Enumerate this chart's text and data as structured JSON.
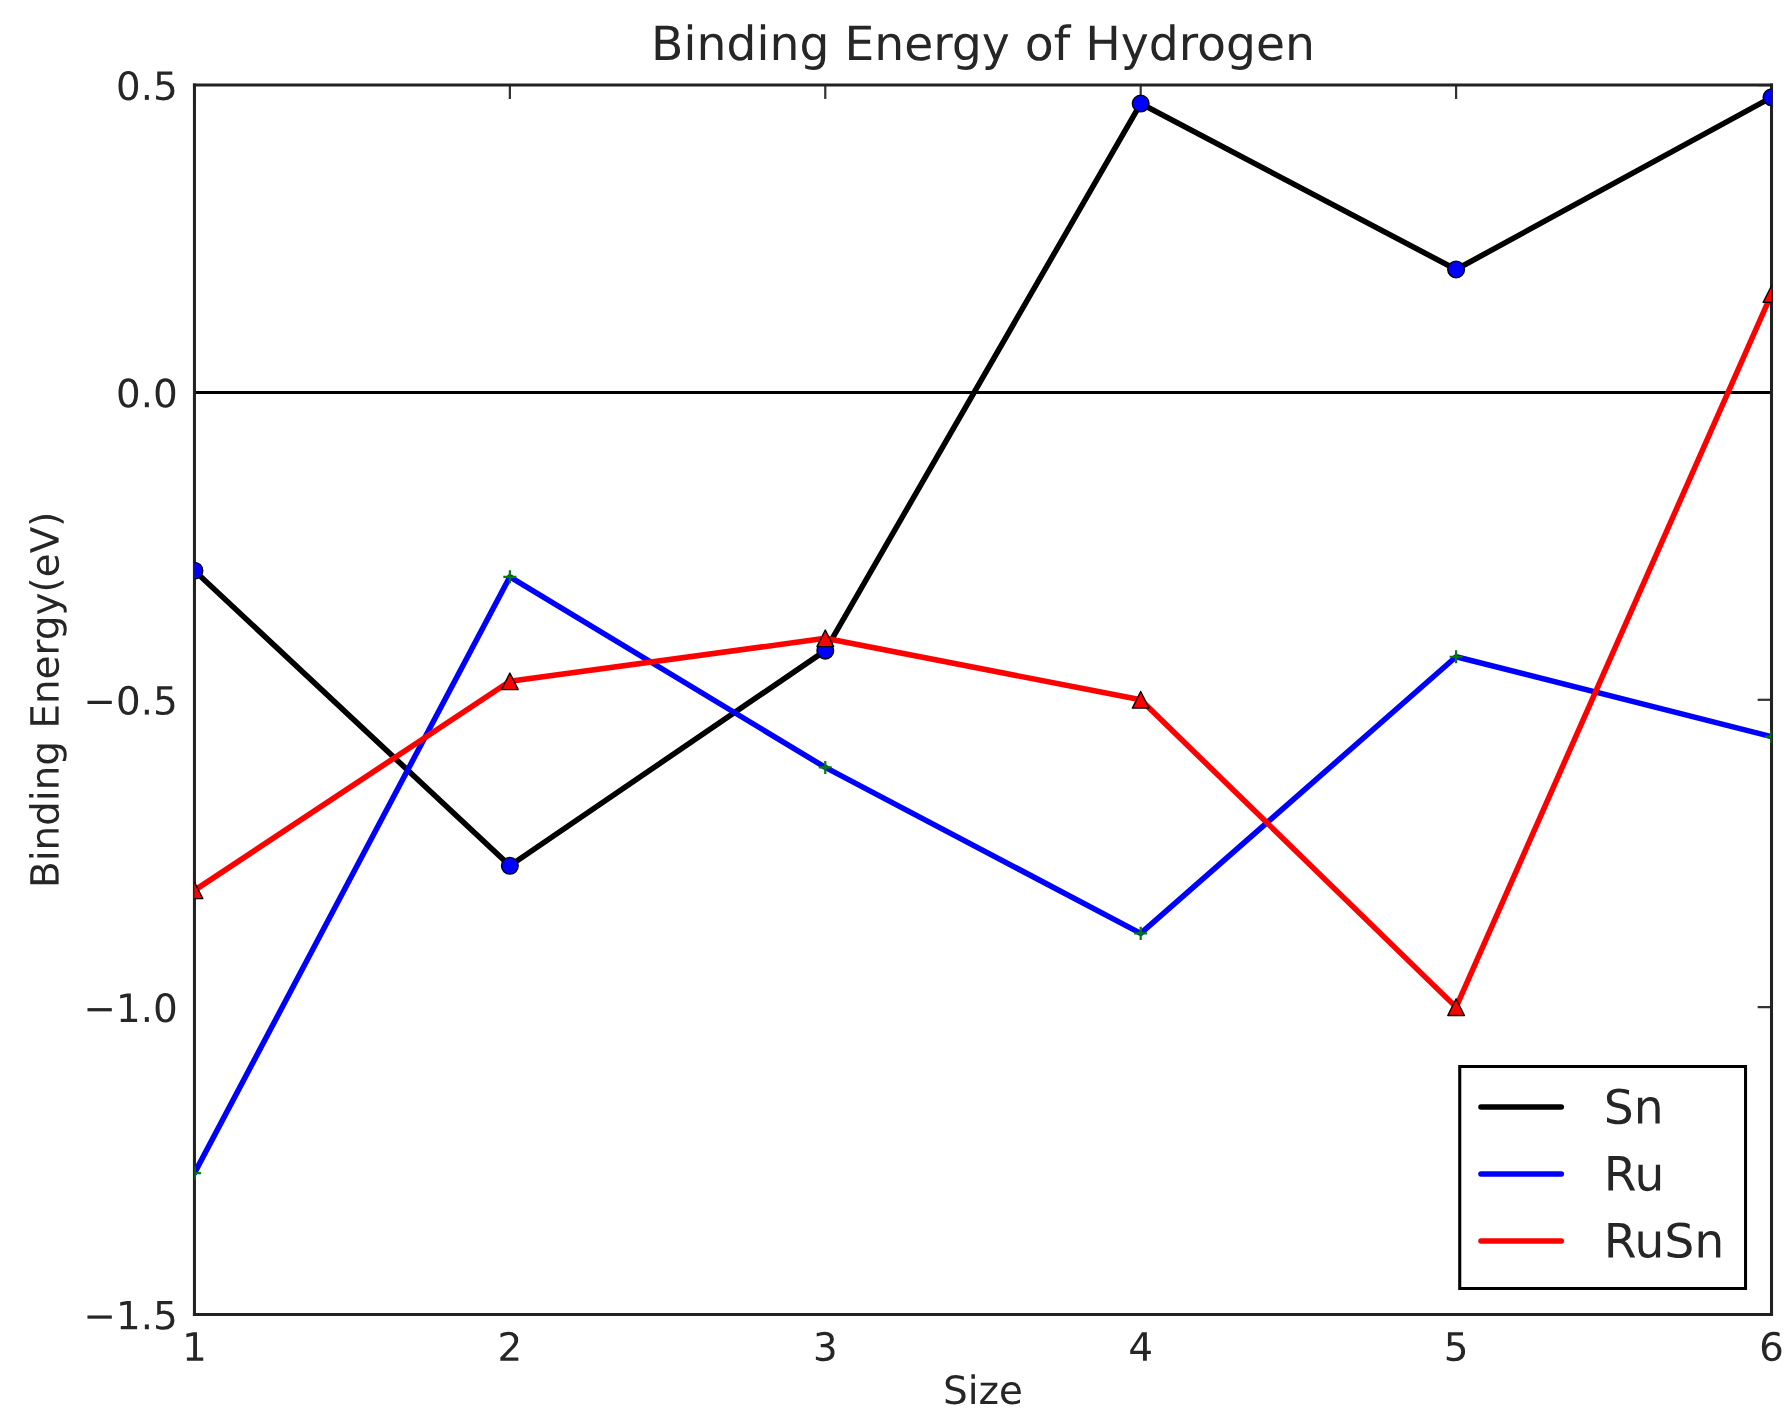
{
  "chart_data": {
    "type": "line",
    "title": "Binding Energy of Hydrogen",
    "xlabel": "Size",
    "ylabel": "Binding Energy(eV)",
    "x": [
      1,
      2,
      3,
      4,
      5,
      6
    ],
    "series": [
      {
        "name": "Sn",
        "color": "#000000",
        "marker": "circle",
        "colors": [
          "#0000ff",
          "#0000ff",
          "#0000ff",
          "#0000ff",
          "#0000ff",
          "#0000ff"
        ],
        "values": [
          -0.29,
          -0.77,
          -0.42,
          0.47,
          0.2,
          0.48
        ]
      },
      {
        "name": "Ru",
        "color": "#0000ff",
        "marker": "cross",
        "colors": [
          "#008000",
          "#008000",
          "#008000",
          "#008000",
          "#008000",
          "#008000"
        ],
        "values": [
          -1.27,
          -0.3,
          -0.61,
          -0.88,
          -0.43,
          -0.56
        ]
      },
      {
        "name": "RuSn",
        "color": "#ff0000",
        "marker": "triangle",
        "colors": [
          "#ff0000",
          "#ff0000",
          "#ff0000",
          "#ff0000",
          "#ff0000",
          "#ff0000"
        ],
        "values": [
          -0.81,
          -0.47,
          -0.4,
          -0.5,
          -1.0,
          0.16
        ]
      }
    ],
    "xlim": [
      1,
      6
    ],
    "xticks": [
      1,
      2,
      3,
      4,
      5,
      6
    ],
    "ylim": [
      -1.5,
      0.5
    ],
    "yticks": [
      {
        "value": -1.5,
        "label": "−1.5"
      },
      {
        "value": -1.0,
        "label": "−1.0"
      },
      {
        "value": -0.5,
        "label": "−0.5"
      },
      {
        "value": 0.0,
        "label": "0.0"
      },
      {
        "value": 0.5,
        "label": "0.5"
      }
    ],
    "ref_lines": [
      {
        "axis": "y",
        "value": 0,
        "color": "#000000",
        "line_style": "solid"
      }
    ],
    "grid": false,
    "legend": "bottom right",
    "line_style": "solid"
  }
}
